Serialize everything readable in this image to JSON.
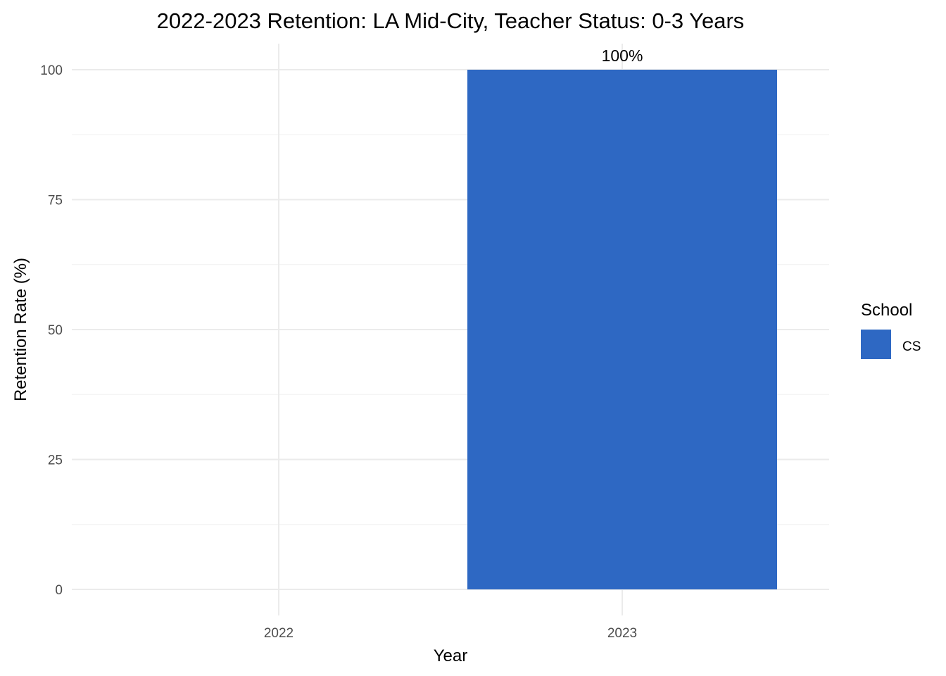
{
  "chart_data": {
    "type": "bar",
    "title": "2022-2023 Retention: LA Mid-City, Teacher Status: 0-3 Years",
    "xlabel": "Year",
    "ylabel": "Retention Rate (%)",
    "categories": [
      "2022",
      "2023"
    ],
    "series": [
      {
        "name": "CS",
        "values": [
          null,
          100
        ],
        "color": "#2E68C3"
      }
    ],
    "data_labels": [
      "",
      "100%"
    ],
    "ylim": [
      0,
      100
    ],
    "yticks": [
      0,
      25,
      50,
      75,
      100
    ],
    "grid": true,
    "legend": {
      "title": "School",
      "position": "right"
    }
  }
}
